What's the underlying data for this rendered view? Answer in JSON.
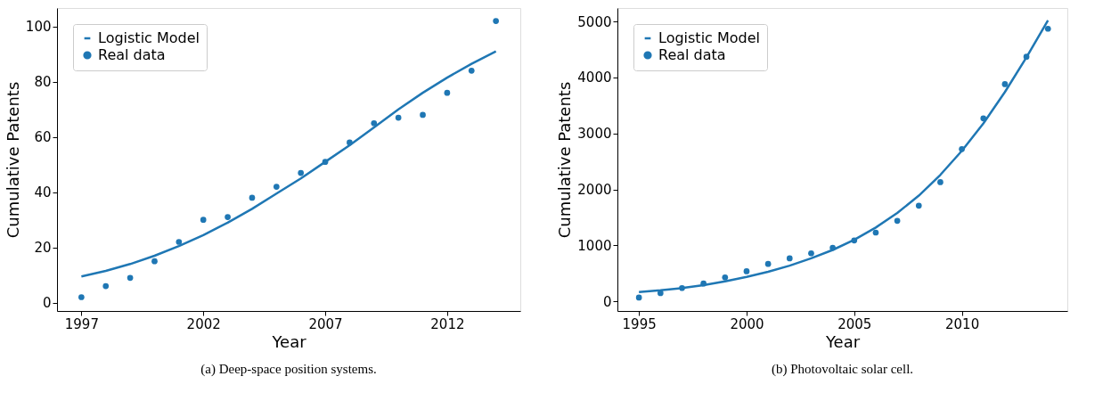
{
  "chart_data": [
    {
      "type": "scatter",
      "xlabel": "Year",
      "ylabel": "Cumulative Patents",
      "annotations": [
        "(a) Deep-space position systems."
      ],
      "xlim": [
        1996.0,
        2015.0
      ],
      "xticks": [
        1997,
        2002,
        2007,
        2012
      ],
      "ylim": [
        -3,
        106.7
      ],
      "yticks": [
        0,
        20,
        40,
        60,
        80,
        100
      ],
      "grid": false,
      "legend": "top left",
      "series": [
        {
          "name": "Logistic Model",
          "type": "line",
          "color": "#1f77b4",
          "x": [
            1997,
            1998,
            1999,
            2000,
            2001,
            2002,
            2003,
            2004,
            2005,
            2006,
            2007,
            2008,
            2009,
            2010,
            2011,
            2012,
            2013,
            2014
          ],
          "values": [
            9.5,
            11.5,
            14,
            17,
            20.5,
            24.5,
            29,
            34,
            39.5,
            45,
            51,
            57,
            63.5,
            70,
            76,
            81.5,
            86.5,
            91
          ]
        },
        {
          "name": "Real data",
          "color": "#1f77b4",
          "marker": "circle",
          "x": [
            1997,
            1998,
            1999,
            2000,
            2001,
            2002,
            2003,
            2004,
            2005,
            2006,
            2007,
            2008,
            2009,
            2010,
            2011,
            2012,
            2013,
            2014
          ],
          "values": [
            2,
            6,
            9,
            15,
            22,
            30,
            31,
            38,
            42,
            47,
            51,
            58,
            65,
            67,
            68,
            76,
            84,
            102
          ]
        }
      ]
    },
    {
      "type": "scatter",
      "xlabel": "Year",
      "ylabel": "Cumulative Patents",
      "annotations": [
        "(b) Photovoltaic solar cell."
      ],
      "xlim": [
        1994.0,
        2014.9
      ],
      "xticks": [
        1995,
        2000,
        2005,
        2010
      ],
      "ylim": [
        -170,
        5240
      ],
      "yticks": [
        0,
        1000,
        2000,
        3000,
        4000,
        5000
      ],
      "grid": false,
      "legend": "top left",
      "series": [
        {
          "name": "Logistic Model",
          "type": "line",
          "color": "#1f77b4",
          "x": [
            1995,
            1996,
            1997,
            1998,
            1999,
            2000,
            2001,
            2002,
            2003,
            2004,
            2005,
            2006,
            2007,
            2008,
            2009,
            2010,
            2011,
            2012,
            2013,
            2014
          ],
          "values": [
            170,
            200,
            240,
            290,
            360,
            440,
            530,
            640,
            770,
            920,
            1100,
            1320,
            1580,
            1890,
            2260,
            2690,
            3180,
            3740,
            4360,
            5020
          ]
        },
        {
          "name": "Real data",
          "color": "#1f77b4",
          "marker": "circle",
          "x": [
            1995,
            1996,
            1997,
            1998,
            1999,
            2000,
            2001,
            2002,
            2003,
            2004,
            2005,
            2006,
            2007,
            2008,
            2009,
            2010,
            2011,
            2012,
            2013,
            2014
          ],
          "values": [
            70,
            150,
            240,
            320,
            430,
            540,
            670,
            770,
            860,
            960,
            1090,
            1230,
            1440,
            1710,
            2130,
            2720,
            3270,
            3880,
            4370,
            4870
          ]
        }
      ]
    }
  ]
}
